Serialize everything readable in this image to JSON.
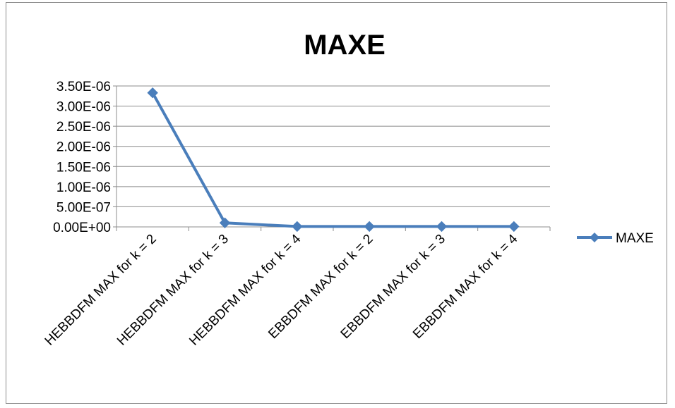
{
  "chart_data": {
    "type": "line",
    "title": "MAXE",
    "xlabel": "",
    "ylabel": "",
    "categories": [
      "HEBBDFM MAX for k = 2",
      "HEBBDFM MAX for k = 3",
      "HEBBDFM MAX for k = 4",
      "EBBDFM MAX for k = 2",
      "EBBDFM MAX for k = 3",
      "EBBDFM MAX for k = 4"
    ],
    "series": [
      {
        "name": "MAXE",
        "values": [
          3.33e-06,
          1e-07,
          1e-08,
          1e-08,
          1e-08,
          1e-08
        ]
      }
    ],
    "ylim": [
      0,
      3.5e-06
    ],
    "yticks": [
      0,
      5e-07,
      1e-06,
      1.5e-06,
      2e-06,
      2.5e-06,
      3e-06,
      3.5e-06
    ],
    "ytick_labels": [
      "0.00E+00",
      "5.00E-07",
      "1.00E-06",
      "1.50E-06",
      "2.00E-06",
      "2.50E-06",
      "3.00E-06",
      "3.50E-06"
    ],
    "grid": true,
    "legend_position": "right",
    "colors": {
      "series": "#4a7ebb",
      "grid": "#8c8c8c",
      "axis": "#8c8c8c"
    }
  }
}
